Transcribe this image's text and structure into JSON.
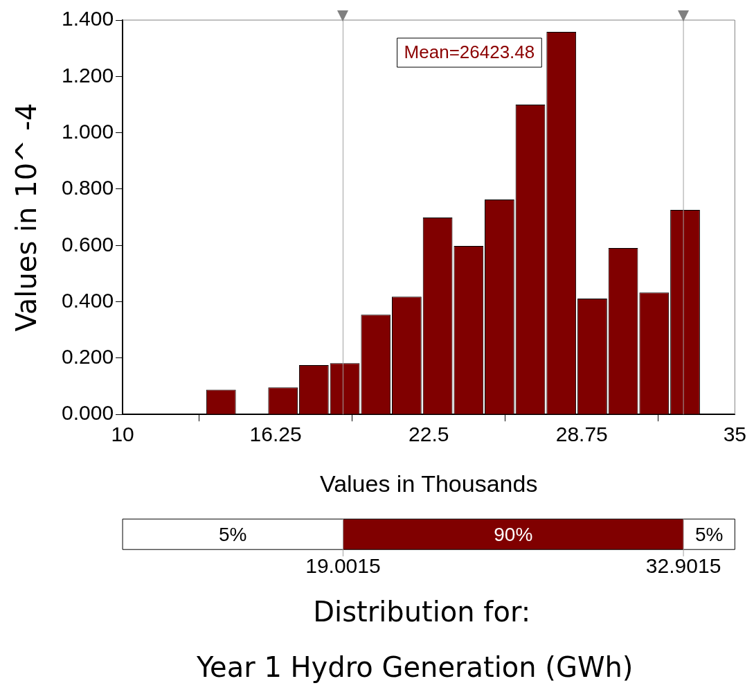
{
  "chart_data": {
    "type": "histogram",
    "title": "Distribution for:",
    "subtitle": "Year 1 Hydro Generation (GWh)",
    "xlabel": "Values in Thousands",
    "ylabel": "Values in 10^ -4",
    "bins": [
      13.39,
      14.65,
      15.92,
      17.18,
      18.44,
      19.71,
      20.97,
      22.23,
      23.5,
      24.76,
      26.02,
      27.28,
      28.55,
      29.81,
      31.07,
      32.34,
      33.6
    ],
    "values": [
      0.088,
      0,
      0.096,
      0.175,
      0.182,
      0.354,
      0.418,
      0.699,
      0.598,
      0.763,
      1.1,
      1.358,
      0.411,
      0.591,
      0.433,
      0.726
    ],
    "color": "#800000",
    "xlim": [
      10,
      35
    ],
    "xticks": [
      10,
      16.25,
      22.5,
      28.75,
      35
    ],
    "ylim": [
      0,
      1.4
    ],
    "yticks": [
      {
        "value": 0,
        "label": "0.000"
      },
      {
        "value": 0.2,
        "label": "0.200"
      },
      {
        "value": 0.4,
        "label": "0.400"
      },
      {
        "value": 0.6,
        "label": "0.600"
      },
      {
        "value": 0.8,
        "label": "0.800"
      },
      {
        "value": 1,
        "label": "1.000"
      },
      {
        "value": 1.2,
        "label": "1.200"
      },
      {
        "value": 1.4,
        "label": "1.400"
      }
    ],
    "ref_lines": [
      {
        "axis": "x",
        "value": 19.0015,
        "color": "#a0a0a0"
      },
      {
        "axis": "x",
        "value": 32.9015,
        "color": "#a0a0a0"
      }
    ],
    "annotations": [
      "Mean=26423.48",
      "5%",
      "90%",
      "5%",
      "19.0015",
      "32.9015"
    ],
    "grid": false,
    "legend": false
  }
}
